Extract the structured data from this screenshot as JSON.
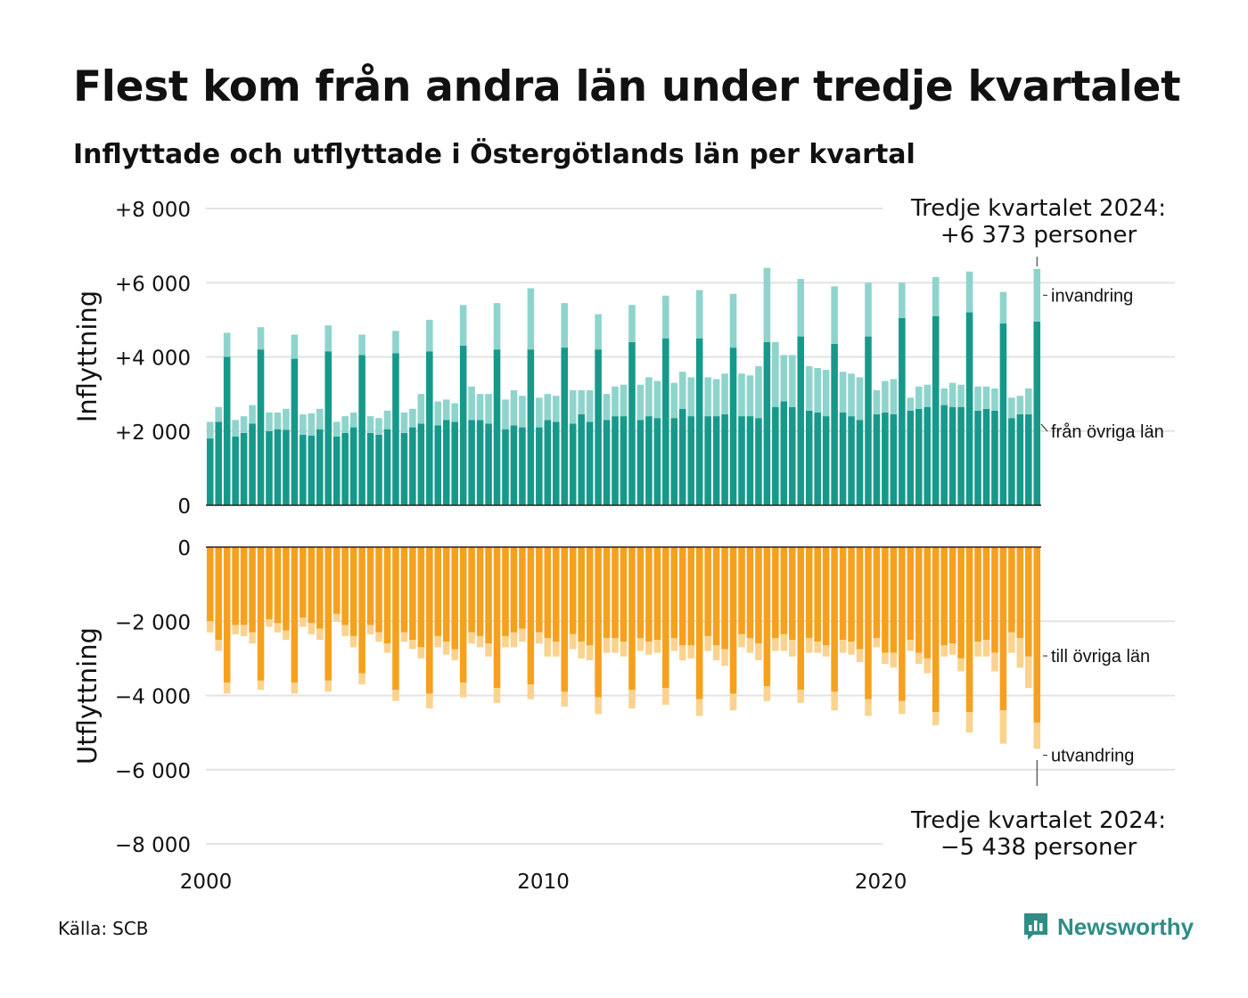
{
  "header": {
    "title": "Flest kom från andra län under tredje kvartalet",
    "subtitle": "Inflyttade och utflyttade i Östergötlands län per kvartal"
  },
  "footer": {
    "source_label": "Källa:",
    "source_value": "SCB",
    "brand": "Newsworthy"
  },
  "colors": {
    "inflow_domestic": "#16998a",
    "inflow_immigration": "#8ed4cc",
    "outflow_domestic": "#f5a11e",
    "outflow_emigration": "#fbd38f",
    "grid": "#e3e3e3",
    "brand": "#2e8d84"
  },
  "chart_data": {
    "type": "bar",
    "stacked": true,
    "x_ticks": [
      "2000",
      "2010",
      "2020"
    ],
    "grid": true,
    "panels": [
      {
        "ylabel": "Inflyttning",
        "ylim": [
          0,
          8000
        ],
        "y_ticks": [
          "+8 000",
          "+6 000",
          "+4 000",
          "+2 000",
          "0"
        ],
        "y_tick_values": [
          8000,
          6000,
          4000,
          2000,
          0
        ],
        "annotation": [
          "Tredje kvartalet 2024:",
          "+6 373 personer"
        ],
        "series": [
          {
            "name": "från övriga län",
            "color": "#16998a",
            "values": [
              1800,
              2250,
              4000,
              1850,
              1950,
              2200,
              4200,
              2000,
              2050,
              2030,
              3950,
              1900,
              1880,
              2050,
              4150,
              1850,
              1950,
              2100,
              4050,
              1950,
              1900,
              2050,
              4100,
              1950,
              2100,
              2200,
              4150,
              2150,
              2300,
              2250,
              4300,
              2300,
              2300,
              2200,
              4200,
              2050,
              2150,
              2100,
              4200,
              2100,
              2300,
              2250,
              4250,
              2200,
              2450,
              2250,
              4200,
              2300,
              2400,
              2400,
              4400,
              2300,
              2400,
              2350,
              4500,
              2350,
              2600,
              2400,
              4500,
              2400,
              2400,
              2450,
              4250,
              2400,
              2400,
              2350,
              4400,
              2650,
              2800,
              2650,
              4550,
              2550,
              2500,
              2400,
              4350,
              2500,
              2400,
              2300,
              4550,
              2450,
              2500,
              2450,
              5050,
              2550,
              2600,
              2650,
              5100,
              2700,
              2650,
              2650,
              5200,
              2550,
              2600,
              2550,
              4900,
              2350,
              2450,
              2450,
              4950
            ],
            "hidden_note": ""
          },
          {
            "name": "invandring",
            "color": "#8ed4cc",
            "values": [
              450,
              400,
              650,
              450,
              450,
              500,
              600,
              500,
              450,
              570,
              650,
              550,
              600,
              550,
              700,
              400,
              450,
              400,
              550,
              450,
              450,
              500,
              600,
              550,
              500,
              800,
              850,
              650,
              550,
              500,
              1100,
              900,
              700,
              800,
              1250,
              800,
              950,
              850,
              1650,
              800,
              700,
              700,
              1200,
              900,
              650,
              850,
              950,
              700,
              800,
              850,
              1000,
              950,
              1050,
              1000,
              1150,
              950,
              1000,
              1050,
              1300,
              1050,
              1000,
              1100,
              1450,
              1150,
              1100,
              1400,
              2000,
              1750,
              1250,
              1400,
              1550,
              1200,
              1200,
              1250,
              1550,
              1100,
              1150,
              1150,
              1450,
              650,
              850,
              950,
              950,
              350,
              600,
              600,
              1050,
              450,
              650,
              600,
              1100,
              650,
              600,
              600,
              850,
              550,
              500,
              700,
              1423
            ]
          }
        ]
      },
      {
        "ylabel": "Utflyttning",
        "ylim": [
          -8000,
          0
        ],
        "y_ticks": [
          "0",
          "−2 000",
          "−4 000",
          "−6 000",
          "−8 000"
        ],
        "y_tick_values": [
          0,
          -2000,
          -4000,
          -6000,
          -8000
        ],
        "annotation": [
          "Tredje kvartalet 2024:",
          "−5 438 personer"
        ],
        "series": [
          {
            "name": "till övriga län",
            "color": "#f5a11e",
            "values": [
              -2000,
              -2500,
              -3650,
              -2100,
              -2100,
              -2300,
              -3600,
              -1950,
              -2050,
              -2250,
              -3650,
              -1900,
              -2050,
              -2200,
              -3600,
              -1800,
              -2100,
              -2400,
              -3400,
              -2100,
              -2300,
              -2600,
              -3850,
              -2300,
              -2500,
              -2700,
              -3950,
              -2400,
              -2550,
              -2750,
              -3650,
              -2300,
              -2400,
              -2600,
              -3800,
              -2400,
              -2300,
              -2200,
              -3700,
              -2300,
              -2450,
              -2550,
              -3900,
              -2350,
              -2550,
              -2650,
              -4050,
              -2450,
              -2450,
              -2550,
              -3850,
              -2450,
              -2550,
              -2500,
              -3800,
              -2450,
              -2650,
              -2650,
              -4100,
              -2400,
              -2650,
              -2750,
              -3950,
              -2350,
              -2450,
              -2600,
              -3750,
              -2450,
              -2350,
              -2500,
              -3850,
              -2450,
              -2550,
              -2650,
              -3900,
              -2500,
              -2550,
              -2750,
              -4100,
              -2450,
              -2850,
              -2850,
              -4150,
              -2500,
              -2850,
              -3000,
              -4450,
              -2650,
              -2600,
              -3000,
              -4450,
              -2550,
              -2500,
              -2850,
              -4400,
              -2300,
              -2450,
              -2950,
              -4730
            ]
          },
          {
            "name": "utvandring",
            "color": "#fbd38f",
            "values": [
              -300,
              -300,
              -300,
              -250,
              -300,
              -300,
              -250,
              -200,
              -250,
              -250,
              -300,
              -250,
              -300,
              -300,
              -300,
              -200,
              -300,
              -300,
              -300,
              -250,
              -250,
              -250,
              -300,
              -250,
              -250,
              -300,
              -400,
              -300,
              -350,
              -300,
              -400,
              -300,
              -300,
              -350,
              -400,
              -300,
              -400,
              -350,
              -400,
              -300,
              -500,
              -400,
              -400,
              -400,
              -450,
              -400,
              -450,
              -400,
              -400,
              -400,
              -500,
              -350,
              -350,
              -350,
              -450,
              -350,
              -400,
              -350,
              -450,
              -400,
              -400,
              -450,
              -450,
              -350,
              -400,
              -450,
              -400,
              -350,
              -450,
              -450,
              -350,
              -400,
              -300,
              -300,
              -500,
              -350,
              -350,
              -350,
              -450,
              -250,
              -300,
              -400,
              -350,
              -300,
              -300,
              -400,
              -350,
              -300,
              -300,
              -350,
              -550,
              -400,
              -450,
              -500,
              -900,
              -550,
              -800,
              -850,
              -708
            ]
          }
        ]
      }
    ]
  }
}
